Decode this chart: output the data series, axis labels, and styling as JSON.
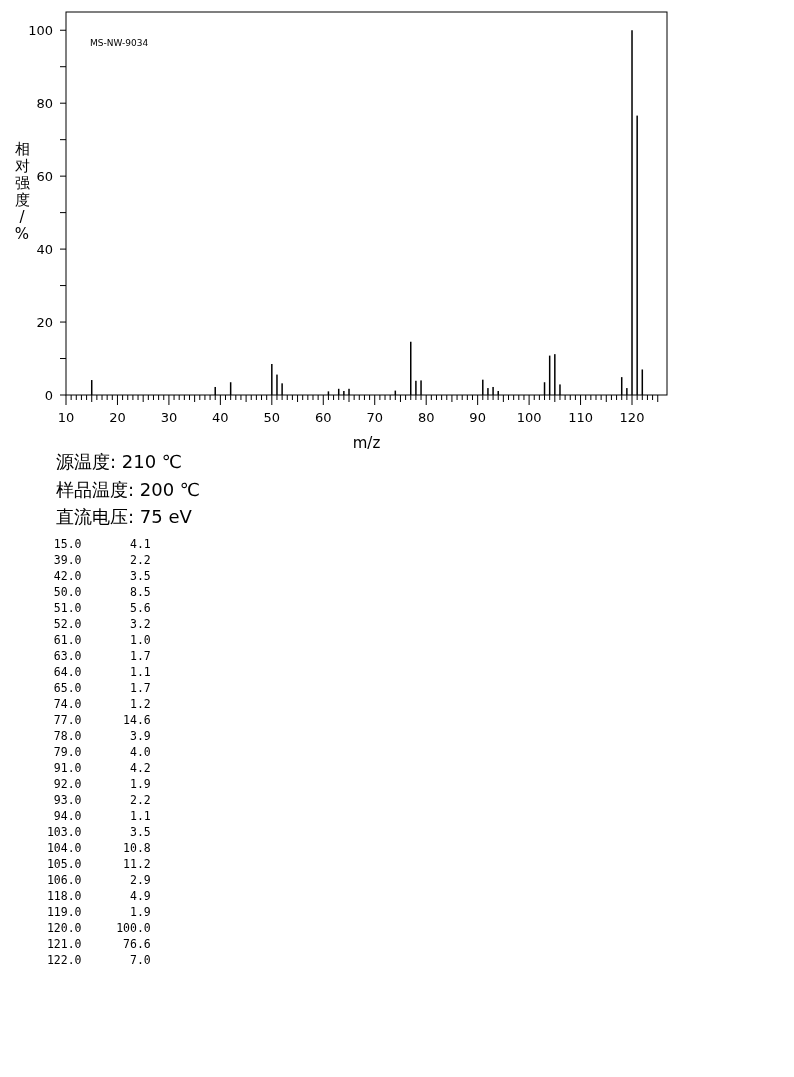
{
  "chart_data": {
    "type": "bar",
    "xlabel": "m/z",
    "ylabel": "相对强度/%",
    "x": [
      15,
      39,
      42,
      50,
      51,
      52,
      61,
      63,
      64,
      65,
      74,
      77,
      78,
      79,
      91,
      92,
      93,
      94,
      103,
      104,
      105,
      106,
      118,
      119,
      120,
      121,
      122
    ],
    "values": [
      4.1,
      2.2,
      3.5,
      8.5,
      5.6,
      3.2,
      1.0,
      1.7,
      1.1,
      1.7,
      1.2,
      14.6,
      3.9,
      4.0,
      4.2,
      1.9,
      2.2,
      1.1,
      3.5,
      10.8,
      11.2,
      2.9,
      4.9,
      1.9,
      100.0,
      76.6,
      7.0
    ],
    "color": "#000000",
    "xlim": [
      10,
      126.8
    ],
    "ylim": [
      0,
      105
    ],
    "xticks": [
      10,
      {
        "value": 11,
        "label": null
      },
      {
        "value": 12,
        "label": null
      },
      {
        "value": 13,
        "label": null
      },
      {
        "value": 14,
        "label": null
      },
      {
        "value": 15,
        "label": null
      },
      {
        "value": 16,
        "label": null
      },
      {
        "value": 17,
        "label": null
      },
      {
        "value": 18,
        "label": null
      },
      {
        "value": 19,
        "label": null
      },
      20,
      {
        "value": 21,
        "label": null
      },
      {
        "value": 22,
        "label": null
      },
      {
        "value": 23,
        "label": null
      },
      {
        "value": 24,
        "label": null
      },
      {
        "value": 25,
        "label": null
      },
      {
        "value": 26,
        "label": null
      },
      {
        "value": 27,
        "label": null
      },
      {
        "value": 28,
        "label": null
      },
      {
        "value": 29,
        "label": null
      },
      30,
      {
        "value": 31,
        "label": null
      },
      {
        "value": 32,
        "label": null
      },
      {
        "value": 33,
        "label": null
      },
      {
        "value": 34,
        "label": null
      },
      {
        "value": 35,
        "label": null
      },
      {
        "value": 36,
        "label": null
      },
      {
        "value": 37,
        "label": null
      },
      {
        "value": 38,
        "label": null
      },
      {
        "value": 39,
        "label": null
      },
      40,
      {
        "value": 41,
        "label": null
      },
      {
        "value": 42,
        "label": null
      },
      {
        "value": 43,
        "label": null
      },
      {
        "value": 44,
        "label": null
      },
      {
        "value": 45,
        "label": null
      },
      {
        "value": 46,
        "label": null
      },
      {
        "value": 47,
        "label": null
      },
      {
        "value": 48,
        "label": null
      },
      {
        "value": 49,
        "label": null
      },
      50,
      {
        "value": 51,
        "label": null
      },
      {
        "value": 52,
        "label": null
      },
      {
        "value": 53,
        "label": null
      },
      {
        "value": 54,
        "label": null
      },
      {
        "value": 55,
        "label": null
      },
      {
        "value": 56,
        "label": null
      },
      {
        "value": 57,
        "label": null
      },
      {
        "value": 58,
        "label": null
      },
      {
        "value": 59,
        "label": null
      },
      60,
      {
        "value": 61,
        "label": null
      },
      {
        "value": 62,
        "label": null
      },
      {
        "value": 63,
        "label": null
      },
      {
        "value": 64,
        "label": null
      },
      {
        "value": 65,
        "label": null
      },
      {
        "value": 66,
        "label": null
      },
      {
        "value": 67,
        "label": null
      },
      {
        "value": 68,
        "label": null
      },
      {
        "value": 69,
        "label": null
      },
      70,
      {
        "value": 71,
        "label": null
      },
      {
        "value": 72,
        "label": null
      },
      {
        "value": 73,
        "label": null
      },
      {
        "value": 74,
        "label": null
      },
      {
        "value": 75,
        "label": null
      },
      {
        "value": 76,
        "label": null
      },
      {
        "value": 77,
        "label": null
      },
      {
        "value": 78,
        "label": null
      },
      {
        "value": 79,
        "label": null
      },
      80,
      {
        "value": 81,
        "label": null
      },
      {
        "value": 82,
        "label": null
      },
      {
        "value": 83,
        "label": null
      },
      {
        "value": 84,
        "label": null
      },
      {
        "value": 85,
        "label": null
      },
      {
        "value": 86,
        "label": null
      },
      {
        "value": 87,
        "label": null
      },
      {
        "value": 88,
        "label": null
      },
      {
        "value": 89,
        "label": null
      },
      90,
      {
        "value": 91,
        "label": null
      },
      {
        "value": 92,
        "label": null
      },
      {
        "value": 93,
        "label": null
      },
      {
        "value": 94,
        "label": null
      },
      {
        "value": 95,
        "label": null
      },
      {
        "value": 96,
        "label": null
      },
      {
        "value": 97,
        "label": null
      },
      {
        "value": 98,
        "label": null
      },
      {
        "value": 99,
        "label": null
      },
      100,
      {
        "value": 101,
        "label": null
      },
      {
        "value": 102,
        "label": null
      },
      {
        "value": 103,
        "label": null
      },
      {
        "value": 104,
        "label": null
      },
      {
        "value": 105,
        "label": null
      },
      {
        "value": 106,
        "label": null
      },
      {
        "value": 107,
        "label": null
      },
      {
        "value": 108,
        "label": null
      },
      {
        "value": 109,
        "label": null
      },
      110,
      {
        "value": 111,
        "label": null
      },
      {
        "value": 112,
        "label": null
      },
      {
        "value": 113,
        "label": null
      },
      {
        "value": 114,
        "label": null
      },
      {
        "value": 115,
        "label": null
      },
      {
        "value": 116,
        "label": null
      },
      {
        "value": 117,
        "label": null
      },
      {
        "value": 118,
        "label": null
      },
      {
        "value": 119,
        "label": null
      },
      120,
      {
        "value": 121,
        "label": null
      },
      {
        "value": 122,
        "label": null
      },
      {
        "value": 123,
        "label": null
      },
      {
        "value": 124,
        "label": null
      },
      {
        "value": 125,
        "label": null
      }
    ],
    "yticks": [
      0,
      {
        "value": 10,
        "label": null
      },
      20,
      {
        "value": 30,
        "label": null
      },
      40,
      {
        "value": 50,
        "label": null
      },
      60,
      {
        "value": 70,
        "label": null
      },
      80,
      {
        "value": 90,
        "label": null
      },
      100
    ],
    "grid": false,
    "annotations": [
      "MS-NW-9034",
      "源温度: 210 ℃",
      "样品温度: 200 ℃",
      "直流电压: 75 eV",
      "  15.0       4.1",
      "  39.0       2.2",
      "  42.0       3.5",
      "  50.0       8.5",
      "  51.0       5.6",
      "  52.0       3.2",
      "  61.0       1.0",
      "  63.0       1.7",
      "  64.0       1.1",
      "  65.0       1.7",
      "  74.0       1.2",
      "  77.0      14.6",
      "  78.0       3.9",
      "  79.0       4.0",
      "  91.0       4.2",
      "  92.0       1.9",
      "  93.0       2.2",
      "  94.0       1.1",
      " 103.0       3.5",
      " 104.0      10.8",
      " 105.0      11.2",
      " 106.0       2.9",
      " 118.0       4.9",
      " 119.0       1.9",
      " 120.0     100.0",
      " 121.0      76.6",
      " 122.0       7.0"
    ]
  }
}
